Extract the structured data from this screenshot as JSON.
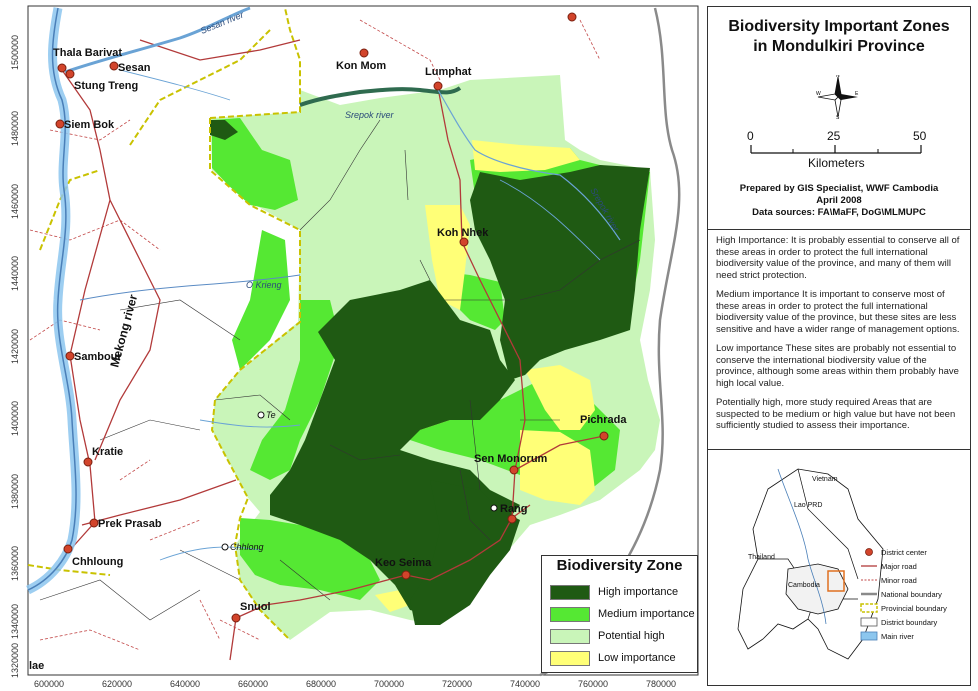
{
  "title": "Biodiversity Important Zones in Mondulkiri Province",
  "scale": {
    "ticks": [
      "0",
      "25",
      "50"
    ],
    "unit": "Kilometers"
  },
  "credits": [
    "Prepared by GIS Specialist, WWF Cambodia",
    "April 2008",
    "Data sources: FA\\MaFF, DoG\\MLMUPC"
  ],
  "notes": [
    "High Importance: It is probably essential to conserve all of these areas in order to protect the full international biodiversity value of the province, and many of them will need strict protection.",
    "Medium importance It is important to conserve most of these areas in order to protect the full international biodiversity value of the province, but these sites are less sensitive and have a wider range of management options.",
    "Low importance  These sites are probably not essential to conserve the international biodiversity value of the province, although some areas within them probably have high local value.",
    "Potentially high, more study required Areas that are suspected to be medium or high value but have not been sufficiently studied to assess their importance."
  ],
  "legend": {
    "title": "Biodiversity Zone",
    "items": [
      {
        "label": "High importance",
        "color": "#1f5a13"
      },
      {
        "label": "Medium importance",
        "color": "#55e833"
      },
      {
        "label": "Potential high",
        "color": "#c9f5b9"
      },
      {
        "label": "Low importance",
        "color": "#ffff77"
      }
    ]
  },
  "x_ticks": [
    "600000",
    "620000",
    "640000",
    "660000",
    "680000",
    "700000",
    "720000",
    "740000",
    "760000",
    "780000"
  ],
  "y_ticks": [
    "1500000",
    "1480000",
    "1460000",
    "1440000",
    "1420000",
    "1400000",
    "1380000",
    "1360000",
    "1340000",
    "1320000"
  ],
  "places": {
    "thala_barivat": "Thala Barivat",
    "sesan": "Sesan",
    "stung_treng": "Stung Treng",
    "siem_bok": "Siem Bok",
    "kon_mom": "Kon Mom",
    "lumphat": "Lumphat",
    "koh_nhek": "Koh Nhek",
    "sambour": "Sambour",
    "kratie": "Kratie",
    "prek_prasab": "Prek Prasab",
    "chhloung": "Chhloung",
    "snuol": "Snuol",
    "keo_seima": "Keo Seima",
    "sen_monorum": "Sen Monorum",
    "rang": "Rang",
    "pichrada": "Pichrada",
    "te": "Te",
    "chhlong": "Chhlong",
    "lae": "lae"
  },
  "rivers": {
    "sesan_river": "Sesan river",
    "srepok_river": "Srepok river",
    "srepok_river_east": "Srepok river",
    "o_krieng": "O Krieng",
    "mekong_river": "Mekong river"
  },
  "locator": {
    "vietnam": "Vietnam",
    "lao_prd": "Lao PRD",
    "thailand": "Thailand",
    "cambodia": "Cambodia",
    "legend": [
      {
        "label": "District center",
        "icon": "district-center-icon"
      },
      {
        "label": "Major road",
        "icon": "major-road-icon"
      },
      {
        "label": "Minor road",
        "icon": "minor-road-icon"
      },
      {
        "label": "National boundary",
        "icon": "national-boundary-icon"
      },
      {
        "label": "Provincial boundary",
        "icon": "provincial-boundary-icon"
      },
      {
        "label": "District boundary",
        "icon": "district-boundary-icon"
      },
      {
        "label": "Main river",
        "icon": "main-river-icon"
      }
    ]
  }
}
